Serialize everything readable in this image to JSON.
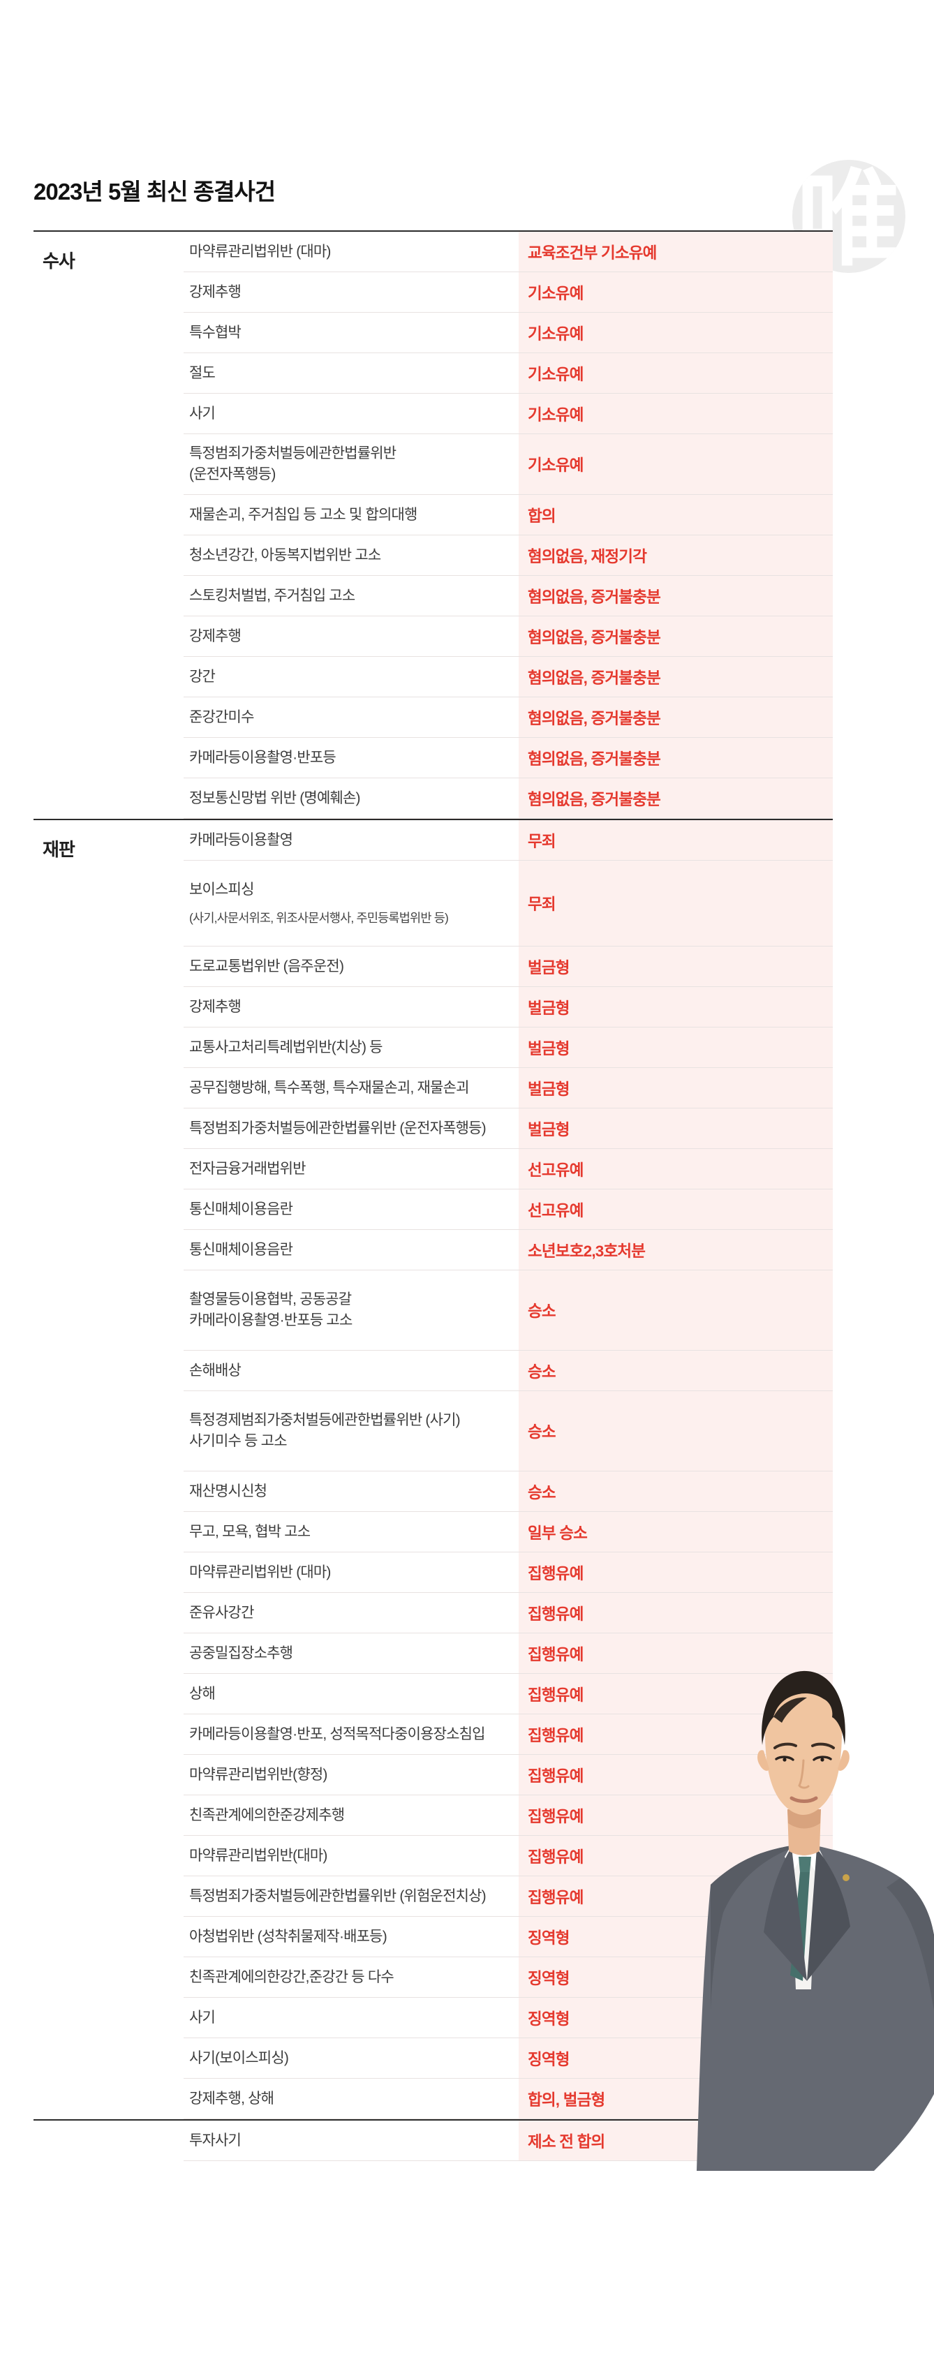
{
  "page": {
    "title": "2023년 5월 최신 종결사건",
    "watermark_glyph": "唯"
  },
  "colors": {
    "accent_red": "#e5392e",
    "result_bg": "#fdf0ee",
    "divider_dark": "#2b2b2b",
    "row_line": "#e8e2e1",
    "watermark_gray": "#ececec"
  },
  "table": {
    "sections": [
      {
        "label": "수사",
        "rows": [
          {
            "case": [
              "마약류관리법위반 (대마)"
            ],
            "result": "교육조건부 기소유예"
          },
          {
            "case": [
              "강제추행"
            ],
            "result": "기소유예"
          },
          {
            "case": [
              "특수협박"
            ],
            "result": "기소유예"
          },
          {
            "case": [
              "절도"
            ],
            "result": "기소유예"
          },
          {
            "case": [
              "사기"
            ],
            "result": "기소유예"
          },
          {
            "case": [
              "특정범죄가중처벌등에관한법률위반",
              "(운전자폭행등)"
            ],
            "result": "기소유예"
          },
          {
            "case": [
              "재물손괴, 주거침입 등 고소 및 합의대행"
            ],
            "result": "합의"
          },
          {
            "case": [
              "청소년강간, 아동복지법위반 고소"
            ],
            "result": "혐의없음, 재정기각"
          },
          {
            "case": [
              "스토킹처벌법, 주거침입 고소"
            ],
            "result": "혐의없음, 증거불충분"
          },
          {
            "case": [
              "강제추행"
            ],
            "result": "혐의없음, 증거불충분"
          },
          {
            "case": [
              "강간"
            ],
            "result": "혐의없음, 증거불충분"
          },
          {
            "case": [
              "준강간미수"
            ],
            "result": "혐의없음, 증거불충분"
          },
          {
            "case": [
              "카메라등이용촬영·반포등"
            ],
            "result": "혐의없음, 증거불충분"
          },
          {
            "case": [
              "정보통신망법 위반 (명예훼손)"
            ],
            "result": "혐의없음, 증거불충분"
          }
        ]
      },
      {
        "label": "재판",
        "rows": [
          {
            "case": [
              "카메라등이용촬영"
            ],
            "result": "무죄"
          },
          {
            "case": [
              "보이스피싱",
              "(사기,사문서위조, 위조사문서행사, 주민등록법위반 등)"
            ],
            "sub": true,
            "tall": true,
            "result": "무죄"
          },
          {
            "case": [
              "도로교통법위반 (음주운전)"
            ],
            "result": "벌금형"
          },
          {
            "case": [
              "강제추행"
            ],
            "result": "벌금형"
          },
          {
            "case": [
              "교통사고처리특례법위반(치상) 등"
            ],
            "result": "벌금형"
          },
          {
            "case": [
              "공무집행방해, 특수폭행, 특수재물손괴, 재물손괴"
            ],
            "result": "벌금형"
          },
          {
            "case": [
              "특정범죄가중처벌등에관한법률위반 (운전자폭행등)"
            ],
            "result": "벌금형"
          },
          {
            "case": [
              "전자금융거래법위반"
            ],
            "result": "선고유예"
          },
          {
            "case": [
              "통신매체이용음란"
            ],
            "result": "선고유예"
          },
          {
            "case": [
              "통신매체이용음란"
            ],
            "result": "소년보호2,3호처분"
          },
          {
            "case": [
              "촬영물등이용협박, 공동공갈",
              "카메라이용촬영·반포등 고소"
            ],
            "tall": true,
            "result": "승소"
          },
          {
            "case": [
              "손해배상"
            ],
            "result": "승소"
          },
          {
            "case": [
              "특정경제범죄가중처벌등에관한법률위반 (사기)",
              "사기미수 등 고소"
            ],
            "tall": true,
            "result": "승소"
          },
          {
            "case": [
              "재산명시신청"
            ],
            "result": "승소"
          },
          {
            "case": [
              "무고, 모욕, 협박 고소"
            ],
            "result": "일부 승소"
          },
          {
            "case": [
              "마약류관리법위반 (대마)"
            ],
            "result": "집행유예"
          },
          {
            "case": [
              "준유사강간"
            ],
            "result": "집행유예"
          },
          {
            "case": [
              "공중밀집장소추행"
            ],
            "result": "집행유예"
          },
          {
            "case": [
              "상해"
            ],
            "result": "집행유예"
          },
          {
            "case": [
              "카메라등이용촬영·반포, 성적목적다중이용장소침입"
            ],
            "result": "집행유예"
          },
          {
            "case": [
              "마약류관리법위반(향정)"
            ],
            "result": "집행유예"
          },
          {
            "case": [
              "친족관계에의한준강제추행"
            ],
            "result": "집행유예"
          },
          {
            "case": [
              "마약류관리법위반(대마)"
            ],
            "result": "집행유예"
          },
          {
            "case": [
              "특정범죄가중처벌등에관한법률위반 (위험운전치상)"
            ],
            "result": "집행유예"
          },
          {
            "case": [
              "아청법위반 (성착취물제작·배포등)"
            ],
            "result": "징역형"
          },
          {
            "case": [
              "친족관계에의한강간,준강간 등 다수"
            ],
            "result": "징역형"
          },
          {
            "case": [
              "사기"
            ],
            "result": "징역형"
          },
          {
            "case": [
              "사기(보이스피싱)"
            ],
            "result": "징역형"
          },
          {
            "case": [
              "강제추행, 상해"
            ],
            "result": "합의, 벌금형"
          }
        ]
      },
      {
        "label": "",
        "rows": [
          {
            "case": [
              "투자사기"
            ],
            "result": "제소 전 합의"
          }
        ]
      }
    ]
  }
}
